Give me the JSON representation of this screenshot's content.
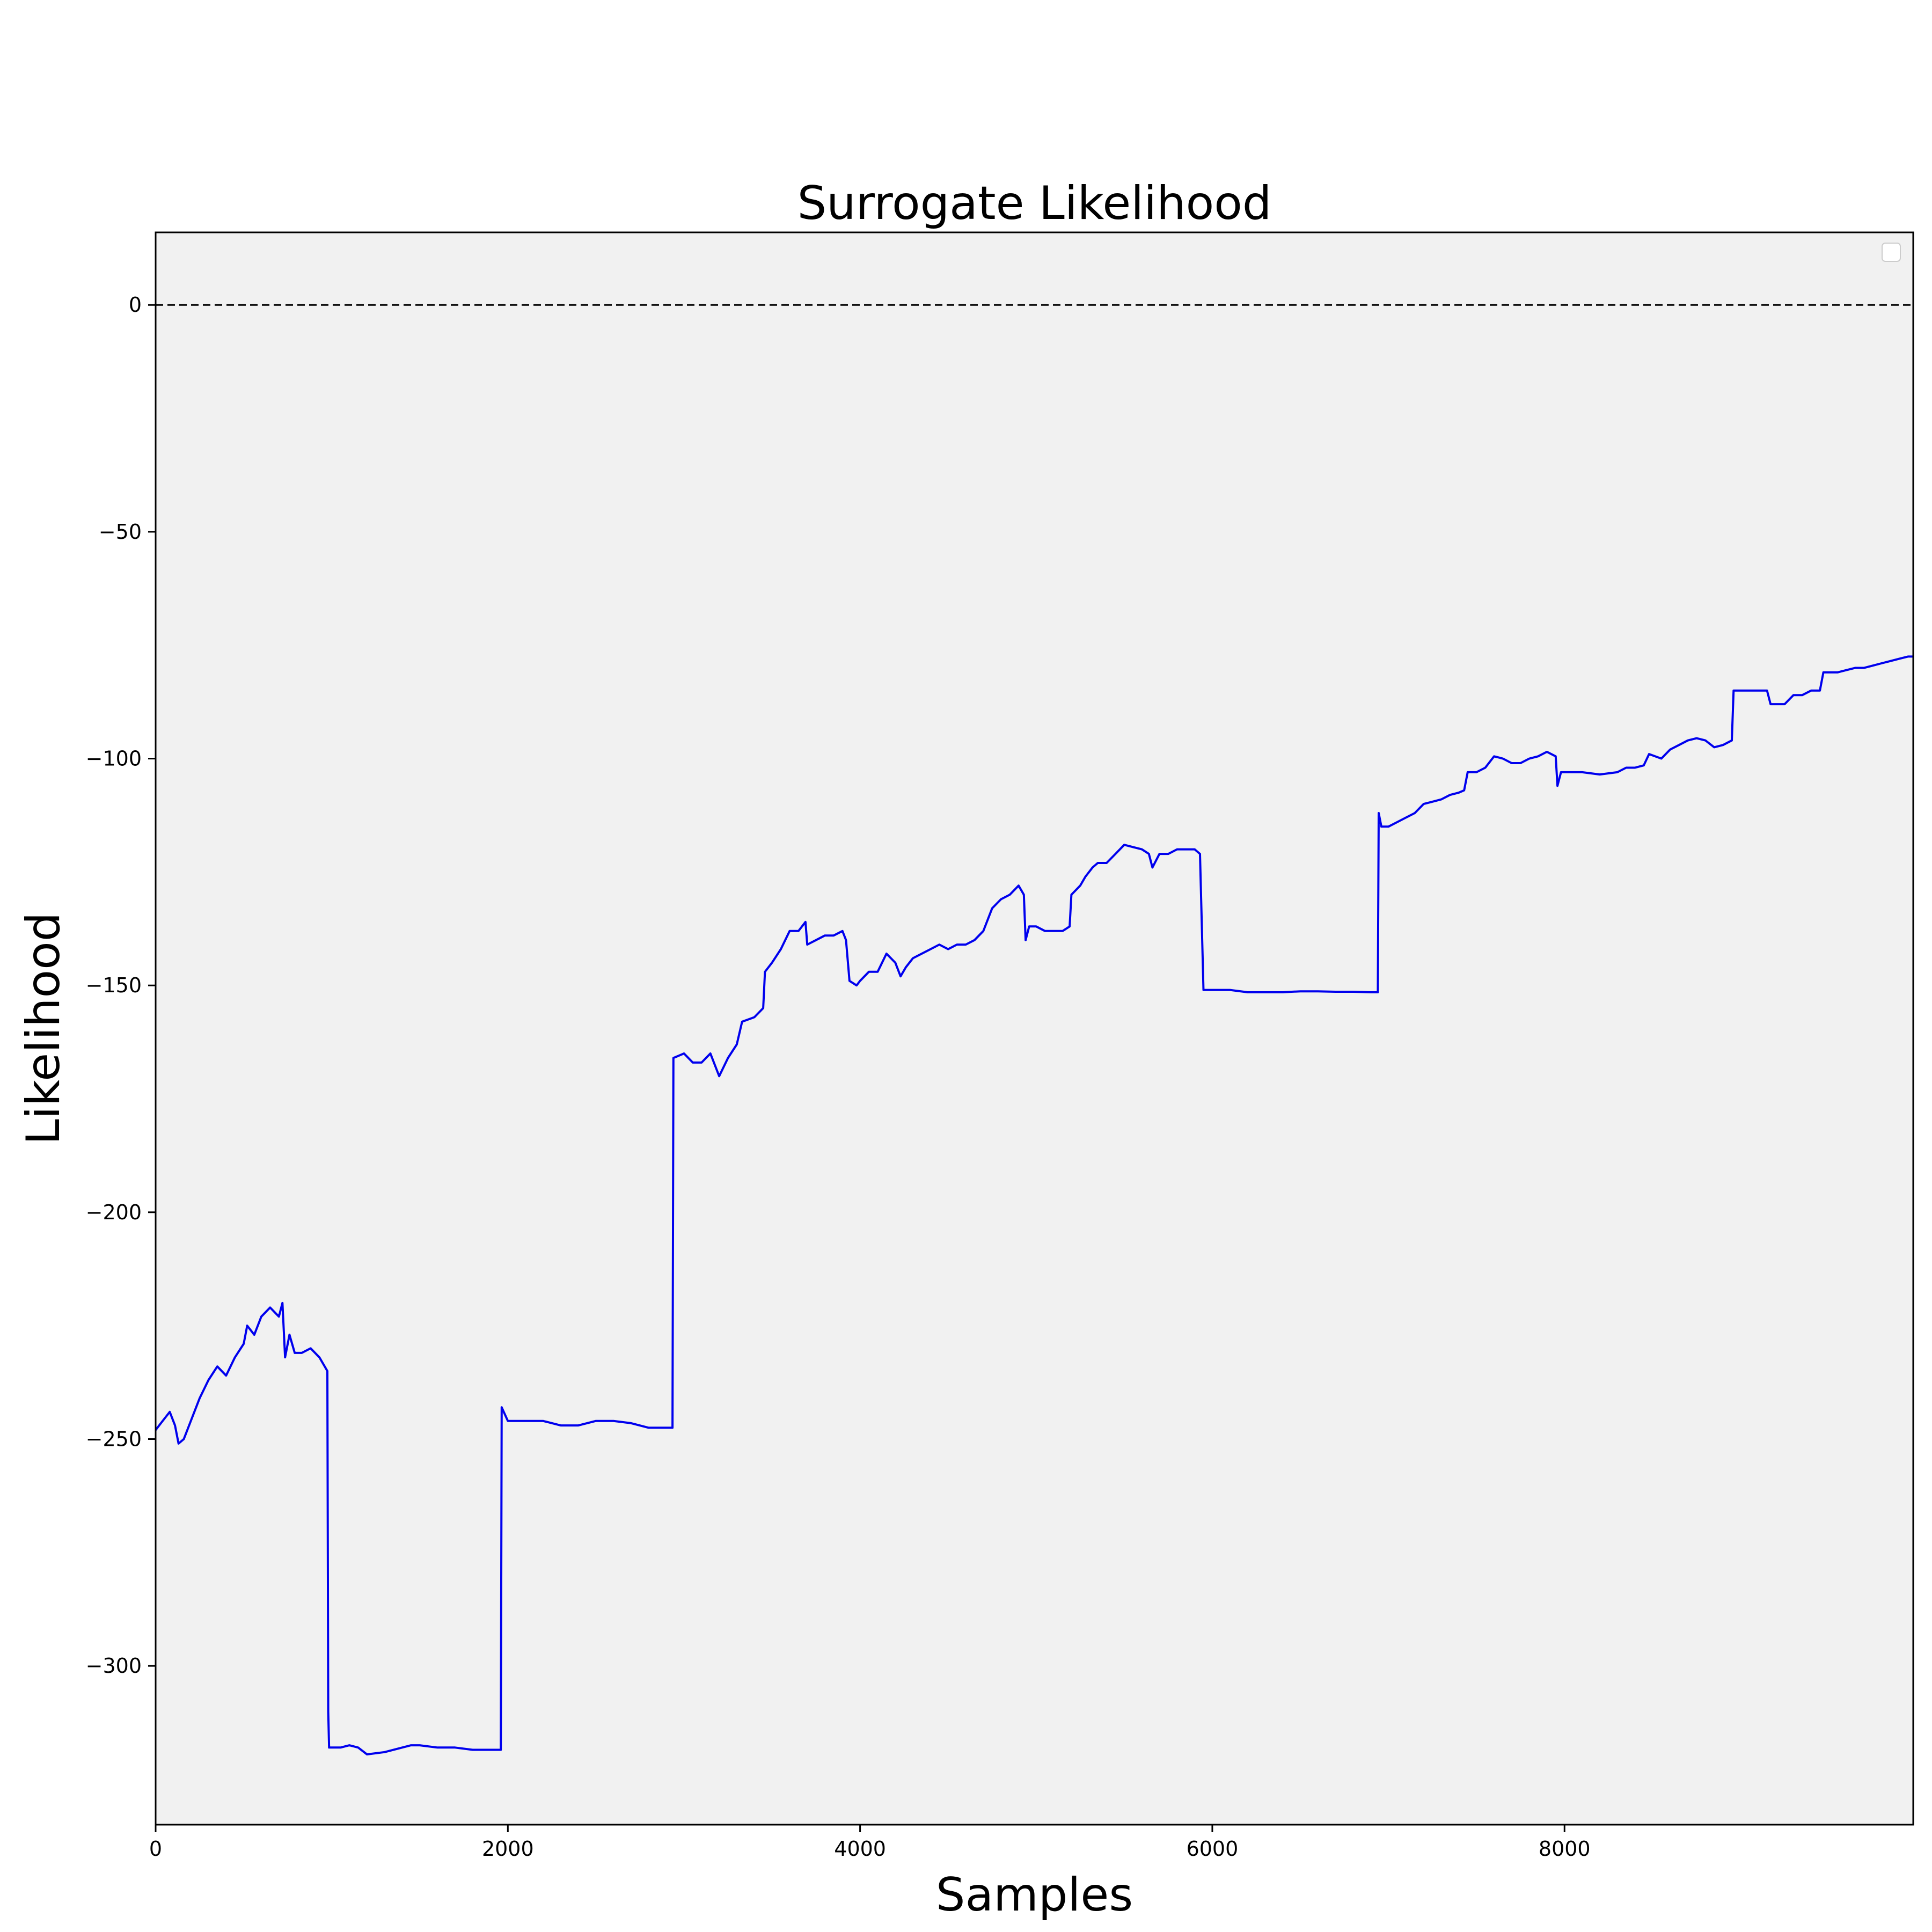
{
  "chart_data": {
    "type": "line",
    "title": "Surrogate  Likelihood",
    "xlabel": "Samples",
    "ylabel": "Likelihood",
    "xlim": [
      0,
      9980
    ],
    "ylim": [
      -335,
      16
    ],
    "xticks": [
      0,
      2000,
      4000,
      6000,
      8000
    ],
    "yticks": [
      0,
      -50,
      -100,
      -150,
      -200,
      -250,
      -300
    ],
    "xtick_labels": [
      "0",
      "2000",
      "4000",
      "6000",
      "8000"
    ],
    "ytick_labels": [
      "0",
      "−50",
      "−100",
      "−150",
      "−200",
      "−250",
      "−300"
    ],
    "background": "#f1f1f1",
    "line_color": "#0000ee",
    "reference_line": {
      "y": 0,
      "style": "dashed",
      "color": "#000000"
    },
    "legend": {
      "placement": "top-right",
      "entries": []
    },
    "grid": false,
    "series": [
      {
        "values_xy": [
          [
            0,
            -248
          ],
          [
            40,
            -246
          ],
          [
            80,
            -244
          ],
          [
            110,
            -247
          ],
          [
            130,
            -251
          ],
          [
            160,
            -250
          ],
          [
            200,
            -246
          ],
          [
            250,
            -241
          ],
          [
            300,
            -237
          ],
          [
            350,
            -234
          ],
          [
            400,
            -236
          ],
          [
            450,
            -232
          ],
          [
            500,
            -229
          ],
          [
            520,
            -225
          ],
          [
            560,
            -227
          ],
          [
            600,
            -223
          ],
          [
            650,
            -221
          ],
          [
            700,
            -223
          ],
          [
            720,
            -220
          ],
          [
            735,
            -232
          ],
          [
            760,
            -227
          ],
          [
            790,
            -231
          ],
          [
            830,
            -231
          ],
          [
            880,
            -230
          ],
          [
            930,
            -232
          ],
          [
            975,
            -235
          ],
          [
            980,
            -310
          ],
          [
            985,
            -318
          ],
          [
            1050,
            -318
          ],
          [
            1100,
            -317.5
          ],
          [
            1150,
            -318
          ],
          [
            1200,
            -319.5
          ],
          [
            1300,
            -319
          ],
          [
            1400,
            -318
          ],
          [
            1450,
            -317.5
          ],
          [
            1500,
            -317.5
          ],
          [
            1600,
            -318
          ],
          [
            1700,
            -318
          ],
          [
            1800,
            -318.5
          ],
          [
            1900,
            -318.5
          ],
          [
            1960,
            -318.5
          ],
          [
            1965,
            -243
          ],
          [
            2000,
            -246
          ],
          [
            2100,
            -246
          ],
          [
            2200,
            -246
          ],
          [
            2300,
            -247
          ],
          [
            2400,
            -247
          ],
          [
            2500,
            -246
          ],
          [
            2600,
            -246
          ],
          [
            2700,
            -246.5
          ],
          [
            2800,
            -247.5
          ],
          [
            2900,
            -247.5
          ],
          [
            2935,
            -247.5
          ],
          [
            2940,
            -166
          ],
          [
            3000,
            -165
          ],
          [
            3050,
            -167
          ],
          [
            3100,
            -167
          ],
          [
            3150,
            -165
          ],
          [
            3200,
            -170
          ],
          [
            3250,
            -166
          ],
          [
            3300,
            -163
          ],
          [
            3330,
            -158
          ],
          [
            3400,
            -157
          ],
          [
            3450,
            -155
          ],
          [
            3460,
            -147
          ],
          [
            3500,
            -145
          ],
          [
            3550,
            -142
          ],
          [
            3600,
            -138
          ],
          [
            3650,
            -138
          ],
          [
            3690,
            -136
          ],
          [
            3700,
            -141
          ],
          [
            3750,
            -140
          ],
          [
            3800,
            -139
          ],
          [
            3850,
            -139
          ],
          [
            3900,
            -138
          ],
          [
            3920,
            -140
          ],
          [
            3940,
            -149
          ],
          [
            3980,
            -150
          ],
          [
            4000,
            -149
          ],
          [
            4050,
            -147
          ],
          [
            4100,
            -147
          ],
          [
            4150,
            -143
          ],
          [
            4200,
            -145
          ],
          [
            4230,
            -148
          ],
          [
            4260,
            -146
          ],
          [
            4300,
            -144
          ],
          [
            4400,
            -142
          ],
          [
            4450,
            -141
          ],
          [
            4500,
            -142
          ],
          [
            4550,
            -141
          ],
          [
            4600,
            -141
          ],
          [
            4650,
            -140
          ],
          [
            4700,
            -138
          ],
          [
            4750,
            -133
          ],
          [
            4800,
            -131
          ],
          [
            4850,
            -130
          ],
          [
            4900,
            -128
          ],
          [
            4930,
            -130
          ],
          [
            4940,
            -140
          ],
          [
            4960,
            -137
          ],
          [
            5000,
            -137
          ],
          [
            5050,
            -138
          ],
          [
            5100,
            -138
          ],
          [
            5150,
            -138
          ],
          [
            5190,
            -137
          ],
          [
            5200,
            -130
          ],
          [
            5250,
            -128
          ],
          [
            5280,
            -126
          ],
          [
            5320,
            -124
          ],
          [
            5350,
            -123
          ],
          [
            5400,
            -123
          ],
          [
            5450,
            -121
          ],
          [
            5500,
            -119
          ],
          [
            5550,
            -119.5
          ],
          [
            5600,
            -120
          ],
          [
            5640,
            -121
          ],
          [
            5660,
            -124
          ],
          [
            5700,
            -121
          ],
          [
            5750,
            -121
          ],
          [
            5800,
            -120
          ],
          [
            5850,
            -120
          ],
          [
            5900,
            -120
          ],
          [
            5930,
            -121
          ],
          [
            5950,
            -151
          ],
          [
            6000,
            -151
          ],
          [
            6100,
            -151
          ],
          [
            6200,
            -151.5
          ],
          [
            6300,
            -151.5
          ],
          [
            6400,
            -151.5
          ],
          [
            6500,
            -151.3
          ],
          [
            6600,
            -151.3
          ],
          [
            6700,
            -151.4
          ],
          [
            6800,
            -151.4
          ],
          [
            6900,
            -151.5
          ],
          [
            6940,
            -151.5
          ],
          [
            6945,
            -112
          ],
          [
            6960,
            -115
          ],
          [
            7000,
            -115
          ],
          [
            7050,
            -114
          ],
          [
            7100,
            -113
          ],
          [
            7150,
            -112
          ],
          [
            7200,
            -110
          ],
          [
            7300,
            -109
          ],
          [
            7350,
            -108
          ],
          [
            7400,
            -107.5
          ],
          [
            7430,
            -107
          ],
          [
            7450,
            -103
          ],
          [
            7500,
            -103
          ],
          [
            7550,
            -102
          ],
          [
            7600,
            -99.5
          ],
          [
            7650,
            -100
          ],
          [
            7700,
            -101
          ],
          [
            7750,
            -101
          ],
          [
            7800,
            -100
          ],
          [
            7850,
            -99.5
          ],
          [
            7900,
            -98.5
          ],
          [
            7950,
            -99.5
          ],
          [
            7960,
            -106
          ],
          [
            7980,
            -103
          ],
          [
            8000,
            -103
          ],
          [
            8100,
            -103
          ],
          [
            8200,
            -103.5
          ],
          [
            8300,
            -103
          ],
          [
            8350,
            -102
          ],
          [
            8400,
            -102
          ],
          [
            8450,
            -101.5
          ],
          [
            8480,
            -99
          ],
          [
            8550,
            -100
          ],
          [
            8600,
            -98
          ],
          [
            8650,
            -97
          ],
          [
            8700,
            -96
          ],
          [
            8750,
            -95.5
          ],
          [
            8800,
            -96
          ],
          [
            8850,
            -97.5
          ],
          [
            8900,
            -97
          ],
          [
            8950,
            -96
          ],
          [
            8960,
            -85
          ],
          [
            9000,
            -85
          ],
          [
            9050,
            -85
          ],
          [
            9100,
            -85
          ],
          [
            9150,
            -85
          ],
          [
            9170,
            -88
          ],
          [
            9200,
            -88
          ],
          [
            9250,
            -88
          ],
          [
            9300,
            -86
          ],
          [
            9350,
            -86
          ],
          [
            9400,
            -85
          ],
          [
            9450,
            -85
          ],
          [
            9470,
            -81
          ],
          [
            9500,
            -81
          ],
          [
            9550,
            -81
          ],
          [
            9600,
            -80.5
          ],
          [
            9650,
            -80
          ],
          [
            9700,
            -80
          ],
          [
            9750,
            -79.5
          ],
          [
            9800,
            -79
          ],
          [
            9850,
            -78.5
          ],
          [
            9900,
            -78
          ],
          [
            9950,
            -77.5
          ],
          [
            9980,
            -77.5
          ]
        ]
      }
    ]
  }
}
